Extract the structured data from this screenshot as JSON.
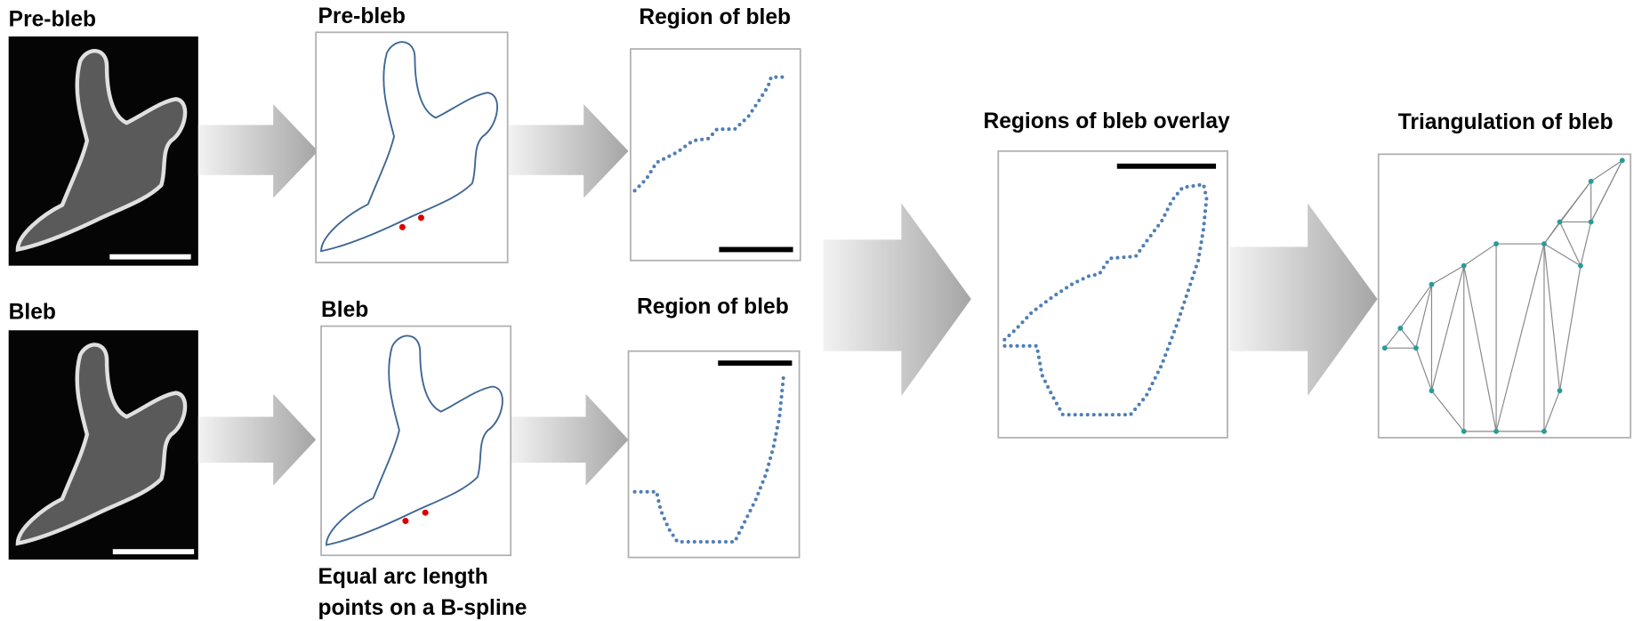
{
  "panels": {
    "image_pre": {
      "title": "Pre-bleb"
    },
    "image_bleb": {
      "title": "Bleb"
    },
    "spline_pre": {
      "title": "Pre-bleb"
    },
    "spline_bleb": {
      "title": "Bleb"
    },
    "region_pre": {
      "title": "Region of bleb"
    },
    "region_bleb": {
      "title": "Region of bleb"
    },
    "overlay": {
      "title": "Regions of bleb overlay"
    },
    "triangulation": {
      "title": "Triangulation of bleb"
    }
  },
  "caption": {
    "lines": [
      "Equal arc length",
      "points on a B-spline"
    ]
  }
}
